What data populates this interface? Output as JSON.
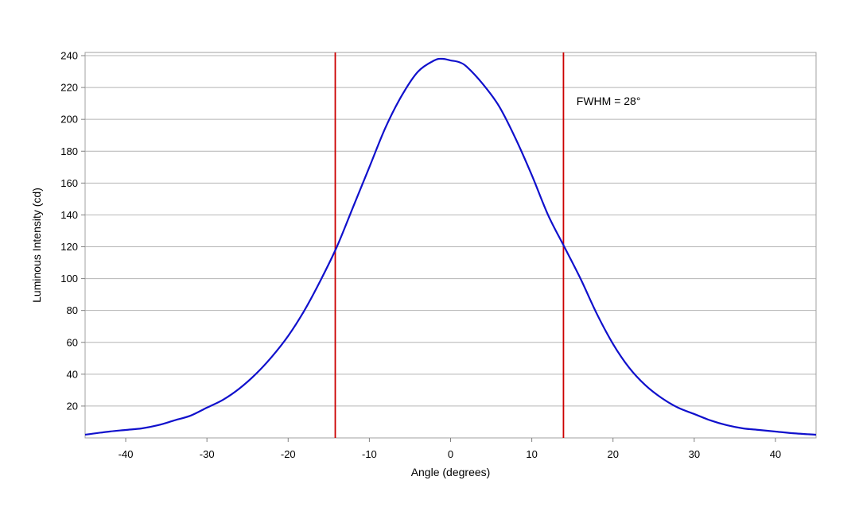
{
  "chart_data": {
    "type": "line",
    "title": "",
    "xlabel": "Angle (degrees)",
    "ylabel": "Luminous Intensity (cd)",
    "xlim": [
      -45,
      45
    ],
    "ylim": [
      0,
      242
    ],
    "x_ticks": [
      -40,
      -30,
      -20,
      -10,
      0,
      10,
      20,
      30,
      40
    ],
    "x_tick_labels": [
      "-40",
      "-30",
      "-20",
      "-10",
      "0",
      "10",
      "20",
      "30",
      "40"
    ],
    "y_ticks": [
      20,
      40,
      60,
      80,
      100,
      120,
      140,
      160,
      180,
      200,
      220,
      240
    ],
    "y_tick_labels": [
      "20",
      "40",
      "60",
      "80",
      "100",
      "120",
      "140",
      "160",
      "180",
      "200",
      "220",
      "240"
    ],
    "grid": "horizontal",
    "series": [
      {
        "color": "#1010cc",
        "x": [
          -45,
          -42,
          -40,
          -38,
          -36,
          -34,
          -32,
          -30,
          -28,
          -26,
          -24,
          -22,
          -20,
          -18,
          -16,
          -14,
          -12,
          -10,
          -8,
          -6,
          -4,
          -2,
          -1,
          0,
          1,
          2,
          4,
          6,
          8,
          10,
          12,
          14,
          16,
          18,
          20,
          22,
          24,
          26,
          28,
          30,
          32,
          34,
          36,
          38,
          40,
          42,
          45
        ],
        "y": [
          2,
          4,
          5,
          6,
          8,
          11,
          14,
          19,
          24,
          31,
          40,
          51,
          64,
          80,
          99,
          120,
          145,
          170,
          195,
          215,
          230,
          237,
          238,
          237,
          236,
          233,
          222,
          208,
          188,
          165,
          140,
          120,
          100,
          78,
          59,
          44,
          33,
          25,
          19,
          15,
          11,
          8,
          6,
          5,
          4,
          3,
          2
        ]
      }
    ],
    "vertical_lines": [
      {
        "x": -14.2,
        "color": "#cc0000"
      },
      {
        "x": 13.9,
        "color": "#cc0000"
      }
    ],
    "annotations": [
      {
        "text": "FWHM = 28°",
        "x": 15.5,
        "y": 209
      }
    ]
  }
}
